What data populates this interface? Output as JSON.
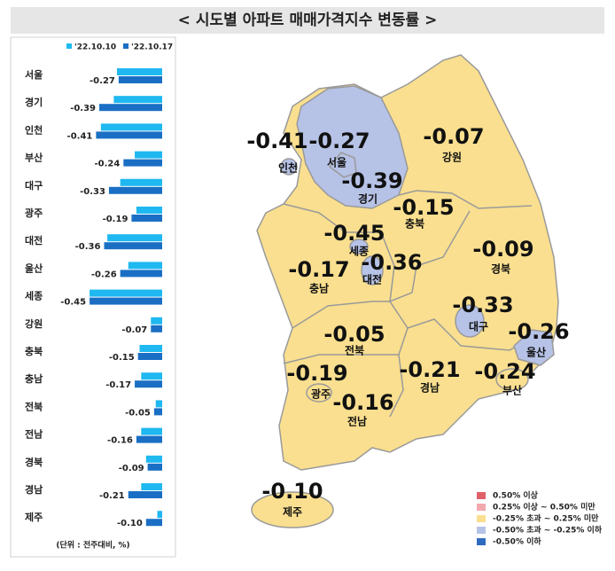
{
  "chart_data": {
    "type": "bar",
    "orientation": "horizontal",
    "title": "< 시도별 아파트 매매가격지수 변동률 >",
    "unit_note": "(단위 : 전주대비, %)",
    "categories": [
      "서울",
      "경기",
      "인천",
      "부산",
      "대구",
      "광주",
      "대전",
      "울산",
      "세종",
      "강원",
      "충북",
      "충남",
      "전북",
      "전남",
      "경북",
      "경남",
      "제주"
    ],
    "series": [
      {
        "name": "'22.10.10",
        "color": "#1fb8f0",
        "values": [
          -0.28,
          -0.3,
          -0.38,
          -0.17,
          -0.26,
          -0.16,
          -0.34,
          -0.21,
          -0.45,
          -0.07,
          -0.14,
          -0.13,
          -0.04,
          -0.13,
          -0.1,
          -0.13,
          -0.03
        ]
      },
      {
        "name": "'22.10.17",
        "color": "#1a6fc4",
        "values": [
          -0.27,
          -0.39,
          -0.41,
          -0.24,
          -0.33,
          -0.19,
          -0.36,
          -0.26,
          -0.45,
          -0.07,
          -0.15,
          -0.17,
          -0.05,
          -0.16,
          -0.09,
          -0.21,
          -0.1
        ],
        "value_labels": [
          "-0.27",
          "-0.39",
          "-0.41",
          "-0.24",
          "-0.33",
          "-0.19",
          "-0.36",
          "-0.26",
          "-0.45",
          "-0.07",
          "-0.15",
          "-0.17",
          "-0.05",
          "-0.16",
          "-0.09",
          "-0.21",
          "-0.10"
        ]
      }
    ],
    "xlim": [
      -0.5,
      0
    ],
    "map_legend": [
      {
        "label": "0.50% 이상",
        "color": "#e0606a"
      },
      {
        "label": "0.25% 이상 ~ 0.50% 미만",
        "color": "#f2a9ae"
      },
      {
        "label": "-0.25% 초과 ~ 0.25% 미만",
        "color": "#f9df8f"
      },
      {
        "label": "-0.50% 초과 ~ -0.25% 이하",
        "color": "#b6c2e6"
      },
      {
        "label": "-0.50% 이하",
        "color": "#2f6cc0"
      }
    ]
  }
}
